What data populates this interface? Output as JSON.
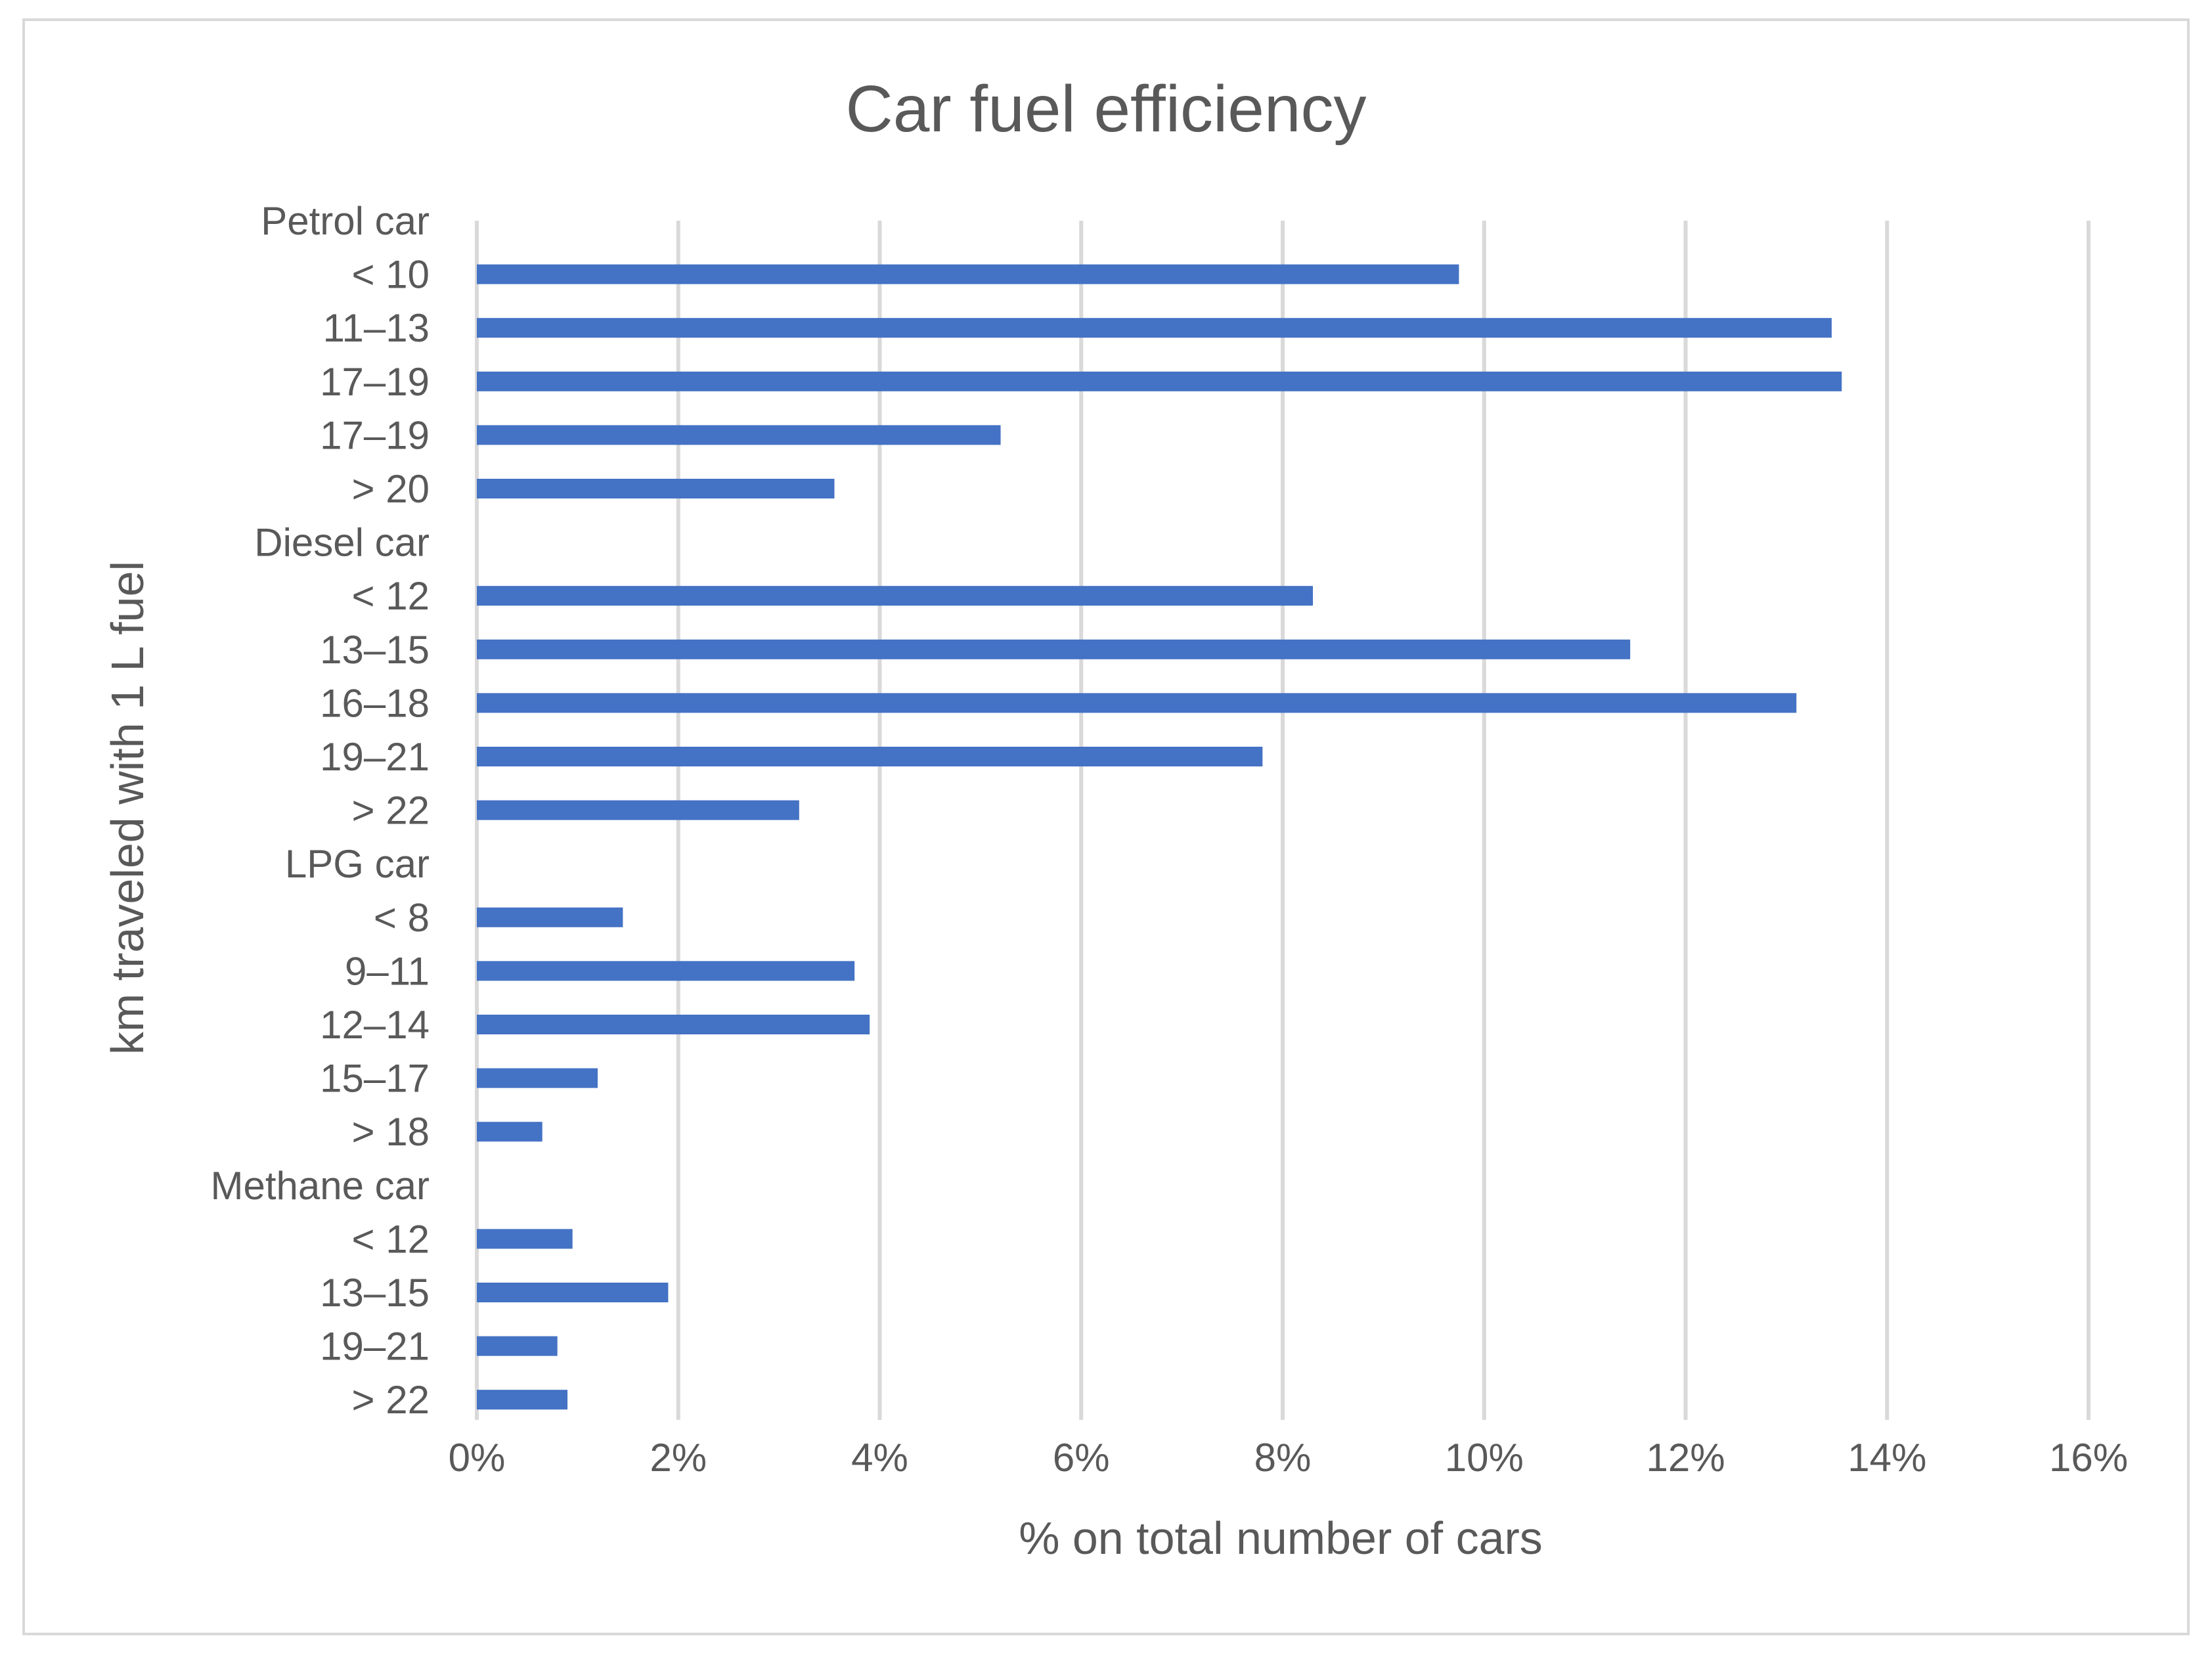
{
  "chart_data": {
    "type": "bar",
    "orientation": "horizontal",
    "title": "Car fuel efficiency",
    "xlabel": "% on total number of cars",
    "ylabel": "km traveled with 1 L fuel",
    "xlim": [
      0,
      16
    ],
    "xticks": [
      "0%",
      "2%",
      "4%",
      "6%",
      "8%",
      "10%",
      "12%",
      "14%",
      "16%"
    ],
    "grid": true,
    "legend": "none",
    "bar_color": "#4472c4",
    "categories": [
      {
        "label": "Petrol car",
        "value": null,
        "group_header": true
      },
      {
        "label": "< 10",
        "value": 9.75
      },
      {
        "label": "11–13",
        "value": 13.45
      },
      {
        "label": "17–19",
        "value": 13.55
      },
      {
        "label": "17–19",
        "value": 5.2
      },
      {
        "label": "> 20",
        "value": 3.55
      },
      {
        "label": "Diesel car",
        "value": null,
        "group_header": true
      },
      {
        "label": "< 12",
        "value": 8.3
      },
      {
        "label": "13–15",
        "value": 11.45
      },
      {
        "label": "16–18",
        "value": 13.1
      },
      {
        "label": "19–21",
        "value": 7.8
      },
      {
        "label": "> 22",
        "value": 3.2
      },
      {
        "label": "LPG car",
        "value": null,
        "group_header": true
      },
      {
        "label": "< 8",
        "value": 1.45
      },
      {
        "label": "9–11",
        "value": 3.75
      },
      {
        "label": "12–14",
        "value": 3.9
      },
      {
        "label": "15–17",
        "value": 1.2
      },
      {
        "label": "> 18",
        "value": 0.65
      },
      {
        "label": "Methane car",
        "value": null,
        "group_header": true
      },
      {
        "label": "< 12",
        "value": 0.95
      },
      {
        "label": "13–15",
        "value": 1.9
      },
      {
        "label": "19–21",
        "value": 0.8
      },
      {
        "label": "> 22",
        "value": 0.9
      }
    ]
  }
}
